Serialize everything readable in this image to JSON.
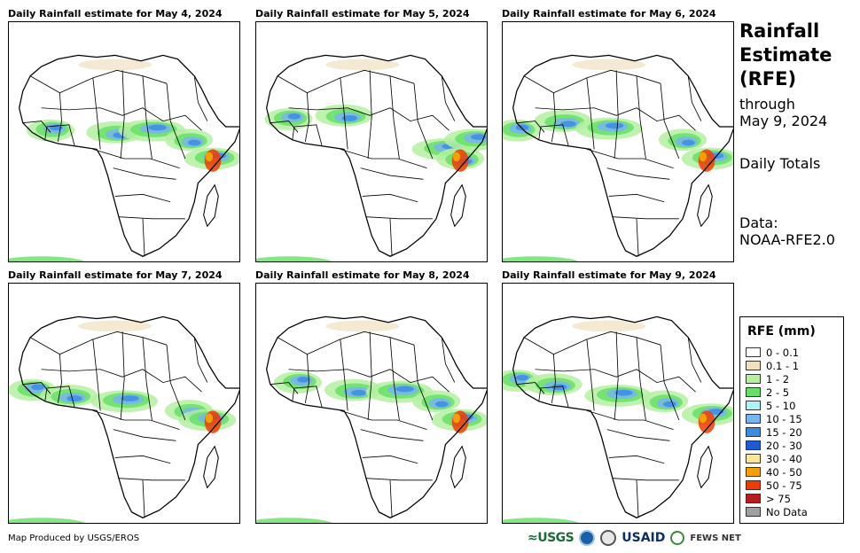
{
  "panels": [
    {
      "title": "Daily Rainfall estimate for May 4, 2024"
    },
    {
      "title": "Daily Rainfall estimate for May 5, 2024"
    },
    {
      "title": "Daily Rainfall estimate for May 6, 2024"
    },
    {
      "title": "Daily Rainfall estimate for May 7, 2024"
    },
    {
      "title": "Daily Rainfall estimate for May 8, 2024"
    },
    {
      "title": "Daily Rainfall estimate for May 9, 2024"
    }
  ],
  "sidebar": {
    "title_line1": "Rainfall",
    "title_line2": "Estimate",
    "title_line3": "(RFE)",
    "through_label": "through",
    "through_date": "May 9, 2024",
    "period": "Daily Totals",
    "data_label": "Data:",
    "data_source": "NOAA-RFE2.0"
  },
  "legend": {
    "title": "RFE (mm)",
    "items": [
      {
        "label": "0 - 0.1",
        "color": "#ffffff"
      },
      {
        "label": "0.1 - 1",
        "color": "#f0dfc0"
      },
      {
        "label": "1 - 2",
        "color": "#b4f0a0"
      },
      {
        "label": "2 - 5",
        "color": "#66e066"
      },
      {
        "label": "5 - 10",
        "color": "#b0f0f8"
      },
      {
        "label": "10 - 15",
        "color": "#78b4f0"
      },
      {
        "label": "15 - 20",
        "color": "#3c8ce6"
      },
      {
        "label": "20 - 30",
        "color": "#1e5ad2"
      },
      {
        "label": "30 - 40",
        "color": "#fae696"
      },
      {
        "label": "40 - 50",
        "color": "#f5a000"
      },
      {
        "label": "50 - 75",
        "color": "#f03c00"
      },
      {
        "label": "> 75",
        "color": "#b41e1e"
      },
      {
        "label": "No Data",
        "color": "#a0a0a0"
      }
    ]
  },
  "footer": {
    "credit": "Map Produced by USGS/EROS",
    "logo_usgs": "≈USGS",
    "logo_usaid": "USAID",
    "logo_fews": "FEWS NET"
  }
}
